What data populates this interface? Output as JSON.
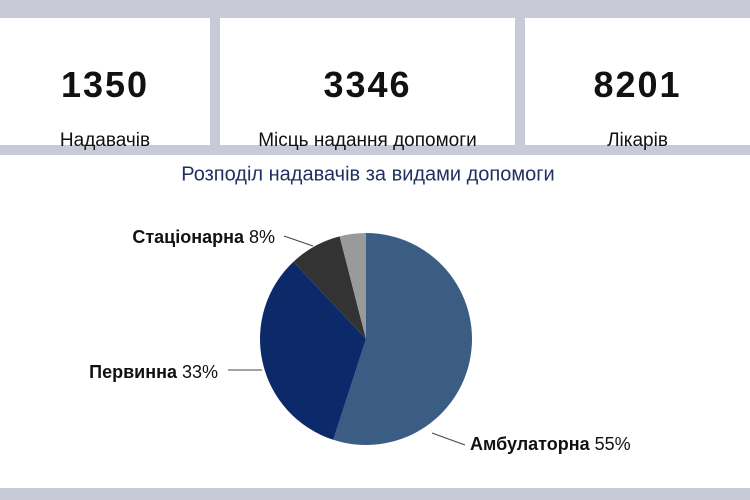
{
  "kpis": [
    {
      "value": "1350",
      "label": "Надавачів"
    },
    {
      "value": "3346",
      "label": "Місць надання допомоги"
    },
    {
      "value": "8201",
      "label": "Лікарів"
    }
  ],
  "chart_data": {
    "type": "pie",
    "title": "Розподіл надавачів за видами допомоги",
    "categories": [
      "Амбулаторна",
      "Первинна",
      "Стаціонарна",
      null
    ],
    "values": [
      55,
      33,
      8,
      4
    ],
    "value_labels": [
      "55%",
      "33%",
      "8%",
      null
    ],
    "colors": [
      "#3b5d84",
      "#0c2a6a",
      "#333333",
      "#9a9a9a"
    ],
    "start_angle": 0,
    "direction": "clockwise"
  }
}
